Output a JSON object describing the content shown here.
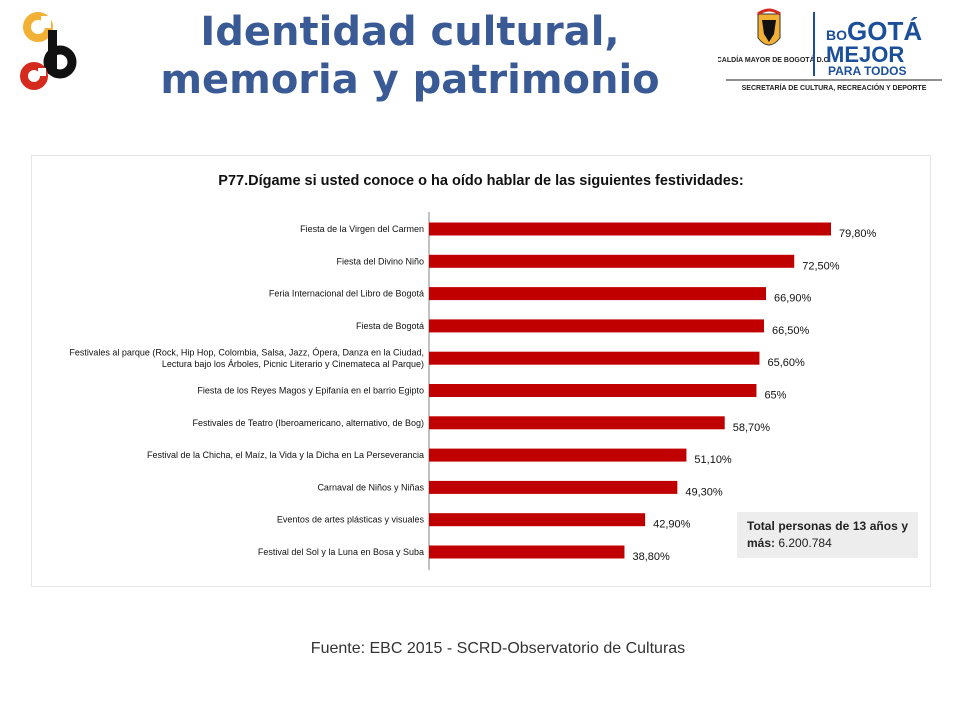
{
  "header": {
    "title_line1": "Identidad cultural,",
    "title_line2": "memoria y patrimonio",
    "logo_right_alcaldia": "ALCALDÍA MAYOR DE BOGOTÁ D.C.",
    "logo_right_bogota_bo": "BO",
    "logo_right_bogota_gota": "GOTÁ",
    "logo_right_mejor": "MEJOR",
    "logo_right_para_todos": "PARA TODOS",
    "logo_right_secretaria": "SECRETARÍA DE CULTURA, RECREACIÓN Y DEPORTE"
  },
  "colors": {
    "title": "#3a5a96",
    "bar": "#c00000",
    "bogota_blue": "#1b4f9a",
    "logo_red": "#d52b1e",
    "logo_yellow": "#f2b134"
  },
  "info_box": {
    "label": "Total personas de 13 años y más:",
    "value": "6.200.784"
  },
  "source": "Fuente: EBC 2015 - SCRD-Observatorio de Culturas",
  "chart_data": {
    "type": "bar",
    "orientation": "horizontal",
    "title": "P77.Dígame si usted conoce o ha oído hablar de las siguientes festividades:",
    "grid": false,
    "xlim": [
      0,
      100
    ],
    "categories": [
      [
        "Fiesta de la Virgen del Carmen"
      ],
      [
        "Fiesta del Divino Niño"
      ],
      [
        "Feria Internacional del Libro de Bogotá"
      ],
      [
        "Fiesta de Bogotá"
      ],
      [
        "Festivales al parque (Rock, Hip Hop, Colombia, Salsa, Jazz, Ópera, Danza en la Ciudad,",
        "Lectura bajo los Árboles, Picnic Literario y Cinemateca al Parque)"
      ],
      [
        "Fiesta de los Reyes Magos y Epifanía en el barrio Egipto"
      ],
      [
        "Festivales de Teatro (Iberoamericano, alternativo, de Bog)"
      ],
      [
        "Festival de la Chicha, el Maíz, la Vida y la Dicha en La Perseverancia"
      ],
      [
        "Carnaval de Niños y Niñas"
      ],
      [
        "Eventos de artes plásticas y visuales"
      ],
      [
        "Festival del Sol y la Luna en Bosa y Suba"
      ]
    ],
    "values": [
      79.8,
      72.5,
      66.9,
      66.5,
      65.6,
      65,
      58.7,
      51.1,
      49.3,
      42.9,
      38.8
    ],
    "value_labels": [
      "79,80%",
      "72,50%",
      "66,90%",
      "66,50%",
      "65,60%",
      "65%",
      "58,70%",
      "51,10%",
      "49,30%",
      "42,90%",
      "38,80%"
    ]
  }
}
